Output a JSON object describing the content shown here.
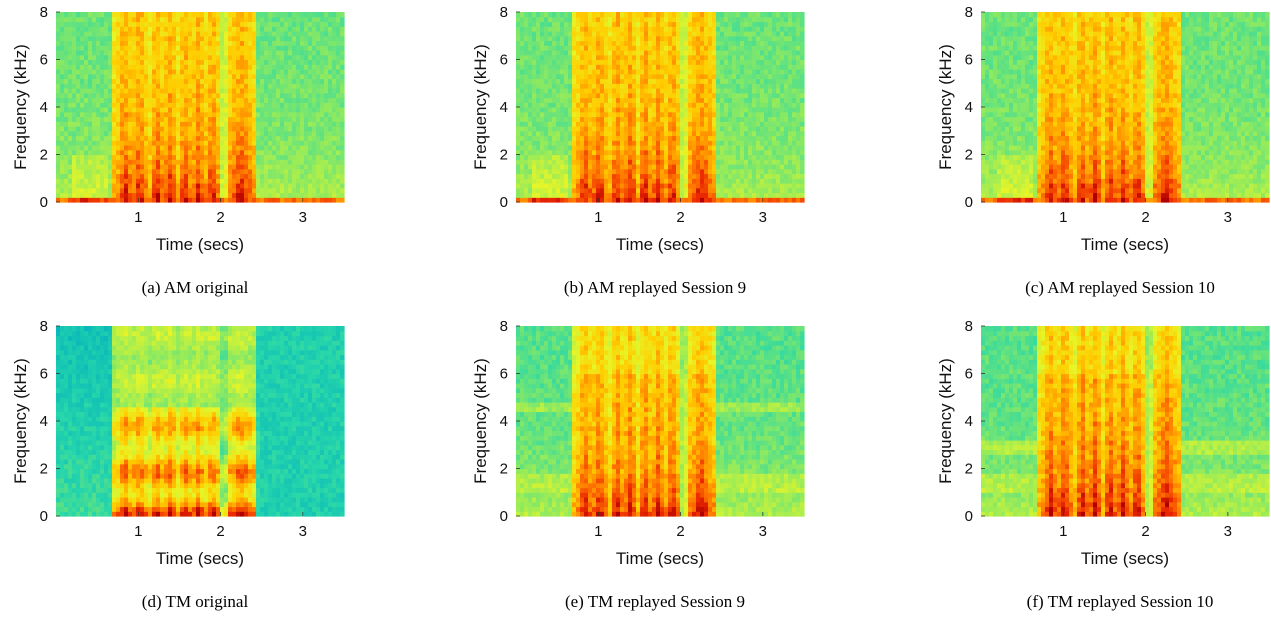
{
  "figure": {
    "panels": [
      {
        "caption": "(a) AM original"
      },
      {
        "caption": "(b) AM replayed Session 9"
      },
      {
        "caption": "(c) AM replayed Session 10"
      },
      {
        "caption": "(d) TM original"
      },
      {
        "caption": "(e) TM replayed Session 9"
      },
      {
        "caption": "(f) TM replayed Session 10"
      }
    ]
  },
  "chart_data": [
    {
      "type": "heatmap",
      "title": "",
      "xlabel": "Time (secs)",
      "ylabel": "Frequency (kHz)",
      "xlim": [
        0,
        3.5
      ],
      "ylim": [
        0,
        8
      ],
      "xticks": [
        1,
        2,
        3
      ],
      "yticks": [
        0,
        2,
        4,
        6,
        8
      ],
      "colormap": "jet",
      "variant": "AM"
    },
    {
      "type": "heatmap",
      "title": "",
      "xlabel": "Time (secs)",
      "ylabel": "Frequency (kHz)",
      "xlim": [
        0,
        3.5
      ],
      "ylim": [
        0,
        8
      ],
      "xticks": [
        1,
        2,
        3
      ],
      "yticks": [
        0,
        2,
        4,
        6,
        8
      ],
      "colormap": "jet",
      "variant": "AM"
    },
    {
      "type": "heatmap",
      "title": "",
      "xlabel": "Time (secs)",
      "ylabel": "Frequency (kHz)",
      "xlim": [
        0,
        3.5
      ],
      "ylim": [
        0,
        8
      ],
      "xticks": [
        1,
        2,
        3
      ],
      "yticks": [
        0,
        2,
        4,
        6,
        8
      ],
      "colormap": "jet",
      "variant": "AM"
    },
    {
      "type": "heatmap",
      "title": "",
      "xlabel": "Time (secs)",
      "ylabel": "Frequency (kHz)",
      "xlim": [
        0,
        3.5
      ],
      "ylim": [
        0,
        8
      ],
      "xticks": [
        1,
        2,
        3
      ],
      "yticks": [
        0,
        2,
        4,
        6,
        8
      ],
      "colormap": "jet",
      "variant": "TM"
    },
    {
      "type": "heatmap",
      "title": "",
      "xlabel": "Time (secs)",
      "ylabel": "Frequency (kHz)",
      "xlim": [
        0,
        3.5
      ],
      "ylim": [
        0,
        8
      ],
      "xticks": [
        1,
        2,
        3
      ],
      "yticks": [
        0,
        2,
        4,
        6,
        8
      ],
      "colormap": "jet",
      "variant": "TM9"
    },
    {
      "type": "heatmap",
      "title": "",
      "xlabel": "Time (secs)",
      "ylabel": "Frequency (kHz)",
      "xlim": [
        0,
        3.5
      ],
      "ylim": [
        0,
        8
      ],
      "xticks": [
        1,
        2,
        3
      ],
      "yticks": [
        0,
        2,
        4,
        6,
        8
      ],
      "colormap": "jet",
      "variant": "TM10"
    }
  ]
}
